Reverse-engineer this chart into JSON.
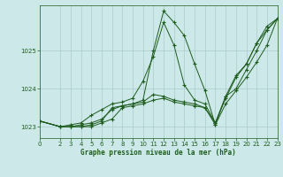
{
  "xlabel": "Graphe pression niveau de la mer (hPa)",
  "background_color": "#cce8e8",
  "grid_color": "#aacccc",
  "line_color": "#1e5c1e",
  "xlim": [
    0,
    23
  ],
  "ylim": [
    1022.7,
    1026.2
  ],
  "yticks": [
    1023,
    1024,
    1025
  ],
  "xticks": [
    0,
    2,
    3,
    4,
    5,
    6,
    7,
    8,
    9,
    10,
    11,
    12,
    13,
    14,
    15,
    16,
    17,
    18,
    19,
    20,
    21,
    22,
    23
  ],
  "series": [
    {
      "x": [
        0,
        2,
        3,
        4,
        5,
        6,
        7,
        8,
        9,
        10,
        11,
        12,
        13,
        14,
        15,
        16,
        17,
        18,
        19,
        20,
        21,
        22,
        23
      ],
      "y": [
        1023.15,
        1023.0,
        1023.05,
        1023.1,
        1023.3,
        1023.45,
        1023.6,
        1023.65,
        1023.75,
        1024.2,
        1024.85,
        1025.75,
        1025.15,
        1024.1,
        1023.7,
        1023.6,
        1023.1,
        1023.75,
        1024.3,
        1024.65,
        1025.2,
        1025.65,
        1025.85
      ]
    },
    {
      "x": [
        0,
        2,
        3,
        4,
        5,
        6,
        7,
        8,
        9,
        10,
        11,
        12,
        13,
        14,
        15,
        16,
        17,
        18,
        19,
        20,
        21,
        22,
        23
      ],
      "y": [
        1023.15,
        1023.0,
        1023.0,
        1023.05,
        1023.1,
        1023.2,
        1023.45,
        1023.55,
        1023.6,
        1023.7,
        1025.0,
        1026.05,
        1025.75,
        1025.4,
        1024.65,
        1023.95,
        1023.05,
        1023.8,
        1024.0,
        1024.5,
        1025.0,
        1025.55,
        1025.85
      ]
    },
    {
      "x": [
        0,
        2,
        3,
        4,
        5,
        6,
        7,
        8,
        9,
        10,
        11,
        12,
        13,
        14,
        15,
        16,
        17,
        18,
        19,
        20,
        21,
        22,
        23
      ],
      "y": [
        1023.15,
        1023.0,
        1023.0,
        1023.0,
        1023.05,
        1023.15,
        1023.5,
        1023.55,
        1023.6,
        1023.65,
        1023.85,
        1023.8,
        1023.7,
        1023.65,
        1023.6,
        1023.5,
        1023.1,
        1023.8,
        1024.35,
        1024.65,
        1025.2,
        1025.55,
        1025.85
      ]
    },
    {
      "x": [
        0,
        2,
        3,
        4,
        5,
        6,
        7,
        8,
        9,
        10,
        11,
        12,
        13,
        14,
        15,
        16,
        17,
        18,
        19,
        20,
        21,
        22,
        23
      ],
      "y": [
        1023.15,
        1023.0,
        1023.0,
        1023.0,
        1023.0,
        1023.1,
        1023.2,
        1023.5,
        1023.55,
        1023.6,
        1023.7,
        1023.75,
        1023.65,
        1023.6,
        1023.55,
        1023.5,
        1023.05,
        1023.6,
        1023.95,
        1024.3,
        1024.7,
        1025.15,
        1025.85
      ]
    }
  ]
}
